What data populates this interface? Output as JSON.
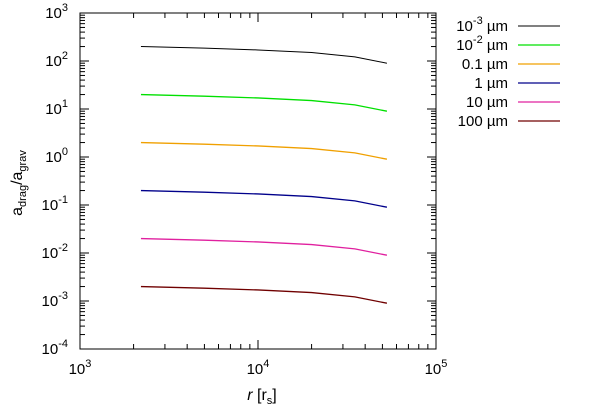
{
  "chart_data": {
    "type": "line",
    "xlabel": {
      "italic": "r",
      "rest": " [r",
      "sub": "s",
      "close": "]"
    },
    "ylabel": {
      "a1": "a",
      "sub1": "drag",
      "slash": "/a",
      "sub2": "grav"
    },
    "x_scale": "log",
    "y_scale": "log",
    "xlim": [
      1000,
      100000
    ],
    "ylim": [
      0.0001,
      1000
    ],
    "x_ticks": [
      {
        "value": 1000,
        "base": "10",
        "exp": "3"
      },
      {
        "value": 10000,
        "base": "10",
        "exp": "4"
      },
      {
        "value": 100000,
        "base": "10",
        "exp": "5"
      }
    ],
    "y_ticks": [
      {
        "value": 0.0001,
        "base": "10",
        "exp": "-4"
      },
      {
        "value": 0.001,
        "base": "10",
        "exp": "-3"
      },
      {
        "value": 0.01,
        "base": "10",
        "exp": "-2"
      },
      {
        "value": 0.1,
        "base": "10",
        "exp": "-1"
      },
      {
        "value": 1,
        "base": "10",
        "exp": "0"
      },
      {
        "value": 10,
        "base": "10",
        "exp": "1"
      },
      {
        "value": 100,
        "base": "10",
        "exp": "2"
      },
      {
        "value": 1000,
        "base": "10",
        "exp": "3"
      }
    ],
    "grid": false,
    "legend_position": "outside-top-right",
    "series": [
      {
        "name_parts": {
          "base": "10",
          "exp": "-3",
          "unit": " µm"
        },
        "color": "#000000",
        "x": [
          2200,
          5000,
          10000,
          20000,
          35000,
          53000
        ],
        "y": [
          200,
          185,
          170,
          150,
          122,
          90
        ]
      },
      {
        "name_parts": {
          "base": "10",
          "exp": "-2",
          "unit": " µm"
        },
        "color": "#00e000",
        "x": [
          2200,
          5000,
          10000,
          20000,
          35000,
          53000
        ],
        "y": [
          20,
          18.5,
          17,
          15,
          12.2,
          9
        ]
      },
      {
        "name_parts": {
          "base": "0.1",
          "exp": "",
          "unit": " µm"
        },
        "color": "#f0a000",
        "x": [
          2200,
          5000,
          10000,
          20000,
          35000,
          53000
        ],
        "y": [
          2.0,
          1.85,
          1.7,
          1.5,
          1.22,
          0.9
        ]
      },
      {
        "name_parts": {
          "base": "1",
          "exp": "",
          "unit": " µm"
        },
        "color": "#00008b",
        "x": [
          2200,
          5000,
          10000,
          20000,
          35000,
          53000
        ],
        "y": [
          0.2,
          0.185,
          0.17,
          0.15,
          0.122,
          0.09
        ]
      },
      {
        "name_parts": {
          "base": "10",
          "exp": "",
          "unit": " µm"
        },
        "color": "#e0209f",
        "x": [
          2200,
          5000,
          10000,
          20000,
          35000,
          53000
        ],
        "y": [
          0.02,
          0.0185,
          0.017,
          0.015,
          0.0122,
          0.009
        ]
      },
      {
        "name_parts": {
          "base": "100",
          "exp": "",
          "unit": " µm"
        },
        "color": "#700000",
        "x": [
          2200,
          5000,
          10000,
          20000,
          35000,
          53000
        ],
        "y": [
          0.002,
          0.00185,
          0.0017,
          0.0015,
          0.00122,
          0.0009
        ]
      }
    ]
  }
}
